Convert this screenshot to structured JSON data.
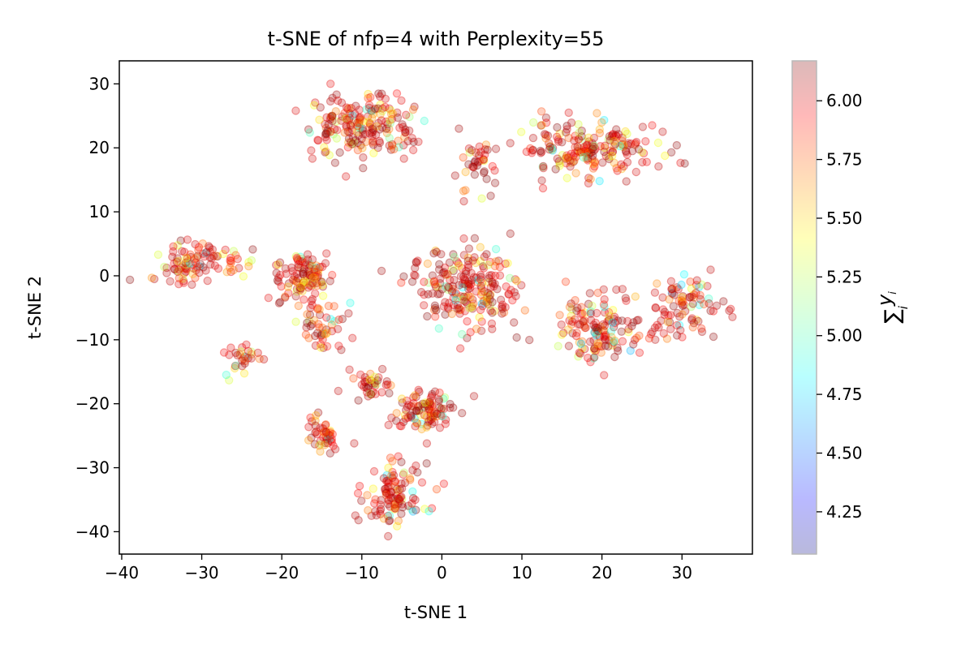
{
  "chart_data": {
    "type": "scatter",
    "title": "t-SNE of nfp=4 with Perplexity=55",
    "xlabel": "t-SNE 1",
    "ylabel": "t-SNE 2",
    "xlim": [
      -40.3,
      38.8
    ],
    "ylim": [
      -43.5,
      33.6
    ],
    "xticks": [
      -40,
      -30,
      -20,
      -10,
      0,
      10,
      20,
      30
    ],
    "yticks": [
      -40,
      -30,
      -20,
      -10,
      0,
      10,
      20,
      30
    ],
    "xtick_labels": [
      "−40",
      "−30",
      "−20",
      "−10",
      "0",
      "10",
      "20",
      "30"
    ],
    "ytick_labels": [
      "−40",
      "−30",
      "−20",
      "−10",
      "0",
      "10",
      "20",
      "30"
    ],
    "grid": false,
    "marker_alpha": 0.25,
    "colormap": "jet",
    "colorbar": {
      "label": "∑ i  y i",
      "range": [
        4.07,
        6.17
      ],
      "ticks": [
        4.25,
        4.5,
        4.75,
        5.0,
        5.25,
        5.5,
        5.75,
        6.0
      ],
      "tick_labels": [
        "4.25",
        "4.50",
        "4.75",
        "5.00",
        "5.25",
        "5.50",
        "5.75",
        "6.00"
      ]
    },
    "clusters": [
      {
        "cx": -10,
        "cy": 23.5,
        "sx": 4.6,
        "sy": 3.5,
        "n": 200
      },
      {
        "cx": 18,
        "cy": 20,
        "sx": 6.5,
        "sy": 3.0,
        "n": 200
      },
      {
        "cx": 4,
        "cy": 17,
        "sx": 1.8,
        "sy": 3.0,
        "n": 40
      },
      {
        "cx": -32,
        "cy": 2,
        "sx": 3.0,
        "sy": 2.5,
        "n": 80
      },
      {
        "cx": -26,
        "cy": 2,
        "sx": 1.5,
        "sy": 2.0,
        "n": 20
      },
      {
        "cx": -17,
        "cy": 0,
        "sx": 2.8,
        "sy": 2.8,
        "n": 110
      },
      {
        "cx": -15,
        "cy": -8,
        "sx": 2.0,
        "sy": 3.0,
        "n": 50
      },
      {
        "cx": -25,
        "cy": -13,
        "sx": 1.5,
        "sy": 2.0,
        "n": 30
      },
      {
        "cx": 3,
        "cy": -2,
        "sx": 5.0,
        "sy": 4.5,
        "n": 230
      },
      {
        "cx": 20,
        "cy": -8,
        "sx": 4.0,
        "sy": 3.5,
        "n": 140
      },
      {
        "cx": 30,
        "cy": -5,
        "sx": 3.5,
        "sy": 3.5,
        "n": 90
      },
      {
        "cx": -9,
        "cy": -17,
        "sx": 1.8,
        "sy": 1.5,
        "n": 40
      },
      {
        "cx": -2,
        "cy": -21,
        "sx": 2.6,
        "sy": 2.6,
        "n": 100
      },
      {
        "cx": -15,
        "cy": -25,
        "sx": 1.6,
        "sy": 2.0,
        "n": 45
      },
      {
        "cx": -6,
        "cy": -34,
        "sx": 3.0,
        "sy": 3.5,
        "n": 110
      }
    ]
  }
}
